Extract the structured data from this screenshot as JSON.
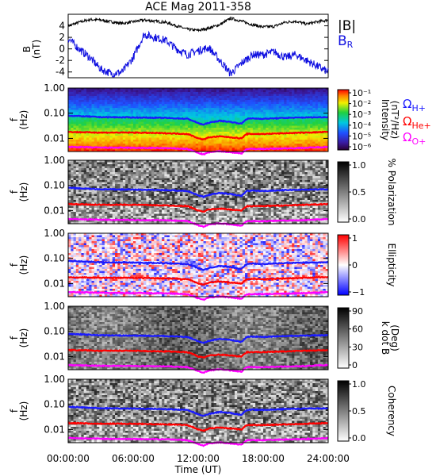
{
  "figure": {
    "title": "ACE Mag 2011-358",
    "x_axis_label": "Time (UT)",
    "x_tick_labels": [
      "00:00:00",
      "06:00:00",
      "12:00:00",
      "18:00:00",
      "24:00:00"
    ]
  },
  "legend": {
    "b_total": "|B|",
    "b_r": "B",
    "b_r_sub": "R",
    "omega_symbol": "Ω",
    "h_plus": "H+",
    "he_plus": "He+",
    "o_plus": "O+"
  },
  "colors": {
    "b_total": "#000000",
    "b_r": "#1010e0",
    "h_plus": "#1a1aff",
    "he_plus": "#ff0000",
    "o_plus": "#ff00ff"
  },
  "panels": {
    "mag": {
      "ylabel": "B",
      "yunit": "(nT)"
    },
    "intensity": {
      "ylabel": "f",
      "yunit": "(Hz)",
      "cbar_title": "Intensity",
      "cbar_unit": "(nT²/Hz)"
    },
    "polarization": {
      "ylabel": "f",
      "yunit": "(Hz)",
      "cbar_title": "% Polarization"
    },
    "ellipticity": {
      "ylabel": "f",
      "yunit": "(Hz)",
      "cbar_title": "Ellipticity"
    },
    "kdotb": {
      "ylabel": "f",
      "yunit": "(Hz)",
      "cbar_title": "k dot B",
      "cbar_unit": "(Deg)"
    },
    "coherency": {
      "ylabel": "f",
      "yunit": "(Hz)",
      "cbar_title": "Coherency"
    }
  },
  "chart_data": [
    {
      "type": "line",
      "panel": "mag",
      "title": "ACE Mag 2011-358",
      "xlabel": "Time (UT)",
      "ylabel": "B (nT)",
      "xlim": [
        0,
        24
      ],
      "ylim": [
        -5,
        6
      ],
      "yticks": [
        -4,
        -2,
        0,
        2,
        4
      ],
      "grid": false,
      "legend_position": "right",
      "series": [
        {
          "name": "|B|",
          "x": [
            0,
            1,
            2,
            3,
            4,
            5,
            6,
            7,
            8,
            9,
            10,
            11,
            12,
            13,
            14,
            15,
            16,
            17,
            18,
            19,
            20,
            21,
            22,
            23,
            24
          ],
          "values": [
            4.0,
            4.6,
            5.1,
            5.0,
            4.7,
            4.4,
            4.7,
            5.0,
            4.8,
            4.6,
            4.0,
            3.4,
            3.2,
            3.6,
            4.2,
            5.3,
            4.8,
            4.2,
            3.8,
            3.9,
            4.6,
            4.8,
            4.3,
            4.7,
            5.0
          ]
        },
        {
          "name": "B",
          "x": [
            0,
            1,
            2,
            3,
            4,
            5,
            6,
            7,
            8,
            9,
            10,
            11,
            12,
            13,
            14,
            15,
            16,
            17,
            18,
            19,
            20,
            21,
            22,
            23,
            24
          ],
          "values": [
            1.8,
            0.0,
            -1.5,
            -3.5,
            -4.3,
            -4.0,
            -1.5,
            2.5,
            2.0,
            1.5,
            0.0,
            -1.0,
            -0.3,
            0.2,
            -2.0,
            -4.3,
            -2.5,
            -1.0,
            -1.0,
            -0.5,
            -1.5,
            -1.0,
            -2.0,
            -3.0,
            -4.0
          ]
        }
      ]
    },
    {
      "type": "heatmap",
      "panel": "intensity",
      "xlabel": "Time (UT)",
      "ylabel": "f (Hz)",
      "yscale": "log",
      "ylim": [
        0.003,
        1.0
      ],
      "ytick_labels": [
        "1.00",
        "0.10",
        "0.01"
      ],
      "colorbar_scale": "log",
      "colorbar_range": [
        1e-06,
        0.1
      ],
      "colorbar_tick_labels": [
        "10⁻¹",
        "10⁻²",
        "10⁻³",
        "10⁻⁴",
        "10⁻⁵",
        "10⁻⁶"
      ],
      "series": [
        {
          "name": "ΩH+",
          "x": [
            0,
            3,
            6,
            9,
            11,
            12,
            12.5,
            13,
            14,
            15,
            16,
            16.5,
            17,
            18,
            20,
            22,
            24
          ],
          "values": [
            0.08,
            0.07,
            0.068,
            0.065,
            0.06,
            0.04,
            0.035,
            0.042,
            0.05,
            0.045,
            0.038,
            0.06,
            0.062,
            0.06,
            0.065,
            0.068,
            0.07
          ]
        },
        {
          "name": "ΩHe+",
          "x": [
            0,
            3,
            6,
            9,
            11,
            12,
            12.5,
            13,
            14,
            15,
            16,
            16.5,
            17,
            18,
            20,
            22,
            24
          ],
          "values": [
            0.018,
            0.017,
            0.017,
            0.016,
            0.015,
            0.01,
            0.009,
            0.011,
            0.012,
            0.011,
            0.01,
            0.015,
            0.015,
            0.015,
            0.016,
            0.017,
            0.018
          ]
        },
        {
          "name": "ΩO+",
          "x": [
            0,
            3,
            6,
            9,
            11,
            12,
            12.5,
            13,
            14,
            15,
            16,
            16.5,
            17,
            18,
            20,
            22,
            24
          ],
          "values": [
            0.0046,
            0.0043,
            0.0042,
            0.0041,
            0.0038,
            0.0026,
            0.0023,
            0.0028,
            0.0031,
            0.0028,
            0.0025,
            0.0038,
            0.0038,
            0.0038,
            0.004,
            0.0042,
            0.0046
          ]
        }
      ]
    },
    {
      "type": "heatmap",
      "panel": "polarization",
      "ylabel": "f (Hz)",
      "yscale": "log",
      "colorbar_range": [
        0,
        1
      ],
      "colorbar_tick_labels": [
        "1.0",
        "0.5",
        "0.0"
      ]
    },
    {
      "type": "heatmap",
      "panel": "ellipticity",
      "ylabel": "f (Hz)",
      "yscale": "log",
      "colorbar_range": [
        -1,
        1
      ],
      "colorbar_tick_labels": [
        "1",
        "0",
        "−1"
      ]
    },
    {
      "type": "heatmap",
      "panel": "kdotb",
      "ylabel": "f (Hz)",
      "yscale": "log",
      "colorbar_range": [
        0,
        90
      ],
      "colorbar_tick_labels": [
        "90",
        "60",
        "30",
        "0"
      ]
    },
    {
      "type": "heatmap",
      "panel": "coherency",
      "ylabel": "f (Hz)",
      "yscale": "log",
      "colorbar_range": [
        0,
        1
      ],
      "colorbar_tick_labels": [
        "1.0",
        "0.5",
        "0.0"
      ]
    }
  ]
}
